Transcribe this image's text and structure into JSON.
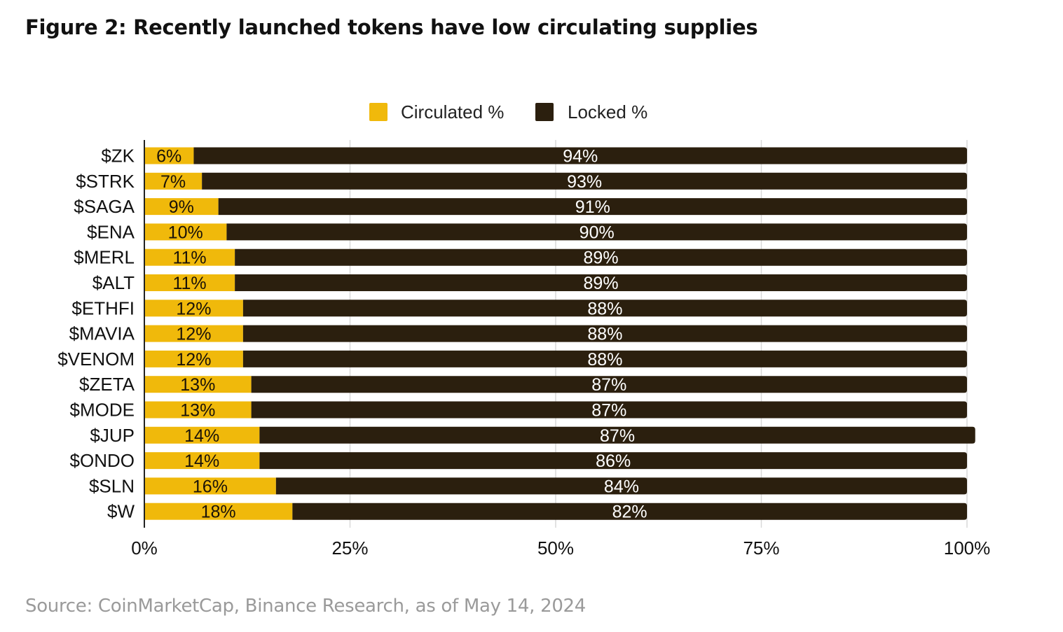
{
  "figure": {
    "title": "Figure 2: Recently launched tokens have low circulating supplies",
    "source": "Source: CoinMarketCap, Binance Research, as of May 14, 2024"
  },
  "chart_data": {
    "type": "bar",
    "orientation": "horizontal",
    "stacked": true,
    "categories": [
      "$ZK",
      "$STRK",
      "$SAGA",
      "$ENA",
      "$MERL",
      "$ALT",
      "$ETHFI",
      "$MAVIA",
      "$VENOM",
      "$ZETA",
      "$MODE",
      "$JUP",
      "$ONDO",
      "$SLN",
      "$W"
    ],
    "series": [
      {
        "name": "Circulated %",
        "color": "#F0B90B",
        "values": [
          6,
          7,
          9,
          10,
          11,
          11,
          12,
          12,
          12,
          13,
          13,
          14,
          14,
          16,
          18
        ],
        "labels": [
          "6%",
          "7%",
          "9%",
          "10%",
          "11%",
          "11%",
          "12%",
          "12%",
          "12%",
          "13%",
          "13%",
          "14%",
          "14%",
          "16%",
          "18%"
        ]
      },
      {
        "name": "Locked %",
        "color": "#2B1F0E",
        "values": [
          94,
          93,
          91,
          90,
          89,
          89,
          88,
          88,
          88,
          87,
          87,
          87,
          86,
          84,
          82
        ],
        "labels": [
          "94%",
          "93%",
          "91%",
          "90%",
          "89%",
          "89%",
          "88%",
          "88%",
          "88%",
          "87%",
          "87%",
          "87%",
          "86%",
          "84%",
          "82%"
        ]
      }
    ],
    "xlim": [
      0,
      100
    ],
    "x_ticks": [
      0,
      25,
      50,
      75,
      100
    ],
    "x_tick_labels": [
      "0%",
      "25%",
      "50%",
      "75%",
      "100%"
    ],
    "grid": "vertical",
    "grid_color": "#d9d9d9",
    "legend_position": "top-center",
    "title": "",
    "xlabel": "",
    "ylabel": ""
  }
}
